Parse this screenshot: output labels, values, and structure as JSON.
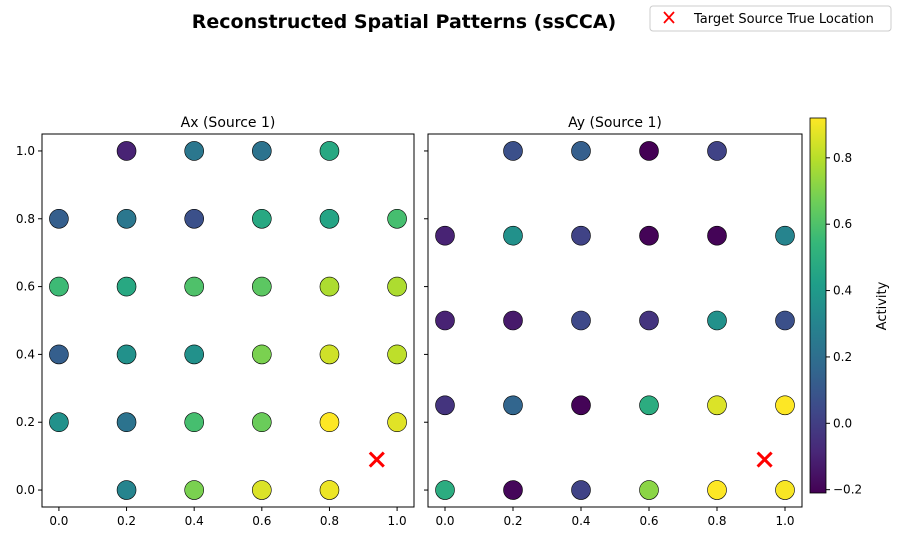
{
  "chart_data": {
    "title": "Reconstructed Spatial Patterns (ssCCA)",
    "legend": {
      "label": "Target Source True Location",
      "marker": "x",
      "color": "#ff0000",
      "placement": "top-right"
    },
    "colorbar": {
      "label": "Activity",
      "colormap": "viridis",
      "range": [
        -0.21,
        0.92
      ],
      "ticks": [
        "-0.2",
        "0.0",
        "0.2",
        "0.4",
        "0.6",
        "0.8"
      ]
    },
    "target": {
      "x": 0.94,
      "y": 0.09
    },
    "panels": [
      {
        "type": "scatter",
        "title": "Ax (Source 1)",
        "xlim": [
          -0.05,
          1.05
        ],
        "ylim": [
          -0.05,
          1.05
        ],
        "xticks": [
          "0.0",
          "0.2",
          "0.4",
          "0.6",
          "0.8",
          "1.0"
        ],
        "yticks": [
          "0.0",
          "0.2",
          "0.4",
          "0.6",
          "0.8",
          "1.0"
        ],
        "points": [
          {
            "x": 0.2,
            "y": 1.0,
            "v": -0.1
          },
          {
            "x": 0.4,
            "y": 1.0,
            "v": 0.24
          },
          {
            "x": 0.6,
            "y": 1.0,
            "v": 0.22
          },
          {
            "x": 0.8,
            "y": 1.0,
            "v": 0.47
          },
          {
            "x": 0.0,
            "y": 0.8,
            "v": 0.13
          },
          {
            "x": 0.2,
            "y": 0.8,
            "v": 0.24
          },
          {
            "x": 0.4,
            "y": 0.8,
            "v": 0.07
          },
          {
            "x": 0.6,
            "y": 0.8,
            "v": 0.47
          },
          {
            "x": 0.8,
            "y": 0.8,
            "v": 0.45
          },
          {
            "x": 1.0,
            "y": 0.8,
            "v": 0.58
          },
          {
            "x": 0.0,
            "y": 0.6,
            "v": 0.56
          },
          {
            "x": 0.2,
            "y": 0.6,
            "v": 0.47
          },
          {
            "x": 0.4,
            "y": 0.6,
            "v": 0.6
          },
          {
            "x": 0.6,
            "y": 0.6,
            "v": 0.63
          },
          {
            "x": 0.8,
            "y": 0.6,
            "v": 0.78
          },
          {
            "x": 1.0,
            "y": 0.6,
            "v": 0.78
          },
          {
            "x": 0.0,
            "y": 0.4,
            "v": 0.13
          },
          {
            "x": 0.2,
            "y": 0.4,
            "v": 0.36
          },
          {
            "x": 0.4,
            "y": 0.4,
            "v": 0.36
          },
          {
            "x": 0.6,
            "y": 0.4,
            "v": 0.69
          },
          {
            "x": 0.8,
            "y": 0.4,
            "v": 0.84
          },
          {
            "x": 1.0,
            "y": 0.4,
            "v": 0.81
          },
          {
            "x": 0.0,
            "y": 0.2,
            "v": 0.36
          },
          {
            "x": 0.2,
            "y": 0.2,
            "v": 0.22
          },
          {
            "x": 0.4,
            "y": 0.2,
            "v": 0.58
          },
          {
            "x": 0.6,
            "y": 0.2,
            "v": 0.66
          },
          {
            "x": 0.8,
            "y": 0.2,
            "v": 0.92
          },
          {
            "x": 1.0,
            "y": 0.2,
            "v": 0.87
          },
          {
            "x": 0.2,
            "y": 0.0,
            "v": 0.3
          },
          {
            "x": 0.4,
            "y": 0.0,
            "v": 0.69
          },
          {
            "x": 0.6,
            "y": 0.0,
            "v": 0.86
          },
          {
            "x": 0.8,
            "y": 0.0,
            "v": 0.89
          }
        ]
      },
      {
        "type": "scatter",
        "title": "Ay (Source 1)",
        "xlim": [
          -0.05,
          1.05
        ],
        "ylim": [
          -0.05,
          1.05
        ],
        "xticks": [
          "0.0",
          "0.2",
          "0.4",
          "0.6",
          "0.8",
          "1.0"
        ],
        "yticks": [],
        "points": [
          {
            "x": 0.2,
            "y": 1.0,
            "v": 0.07
          },
          {
            "x": 0.4,
            "y": 1.0,
            "v": 0.13
          },
          {
            "x": 0.6,
            "y": 1.0,
            "v": -0.21
          },
          {
            "x": 0.8,
            "y": 1.0,
            "v": 0.02
          },
          {
            "x": 0.0,
            "y": 0.75,
            "v": -0.1
          },
          {
            "x": 0.2,
            "y": 0.75,
            "v": 0.36
          },
          {
            "x": 0.4,
            "y": 0.75,
            "v": 0.02
          },
          {
            "x": 0.6,
            "y": 0.75,
            "v": -0.2
          },
          {
            "x": 0.8,
            "y": 0.75,
            "v": -0.2
          },
          {
            "x": 1.0,
            "y": 0.75,
            "v": 0.3
          },
          {
            "x": 0.0,
            "y": 0.5,
            "v": -0.1
          },
          {
            "x": 0.2,
            "y": 0.5,
            "v": -0.13
          },
          {
            "x": 0.4,
            "y": 0.5,
            "v": 0.04
          },
          {
            "x": 0.6,
            "y": 0.5,
            "v": -0.04
          },
          {
            "x": 0.8,
            "y": 0.5,
            "v": 0.36
          },
          {
            "x": 1.0,
            "y": 0.5,
            "v": 0.07
          },
          {
            "x": 0.0,
            "y": 0.25,
            "v": -0.04
          },
          {
            "x": 0.2,
            "y": 0.25,
            "v": 0.16
          },
          {
            "x": 0.4,
            "y": 0.25,
            "v": -0.2
          },
          {
            "x": 0.6,
            "y": 0.25,
            "v": 0.49
          },
          {
            "x": 0.8,
            "y": 0.25,
            "v": 0.86
          },
          {
            "x": 1.0,
            "y": 0.25,
            "v": 0.92
          },
          {
            "x": 0.0,
            "y": 0.0,
            "v": 0.49
          },
          {
            "x": 0.2,
            "y": 0.0,
            "v": -0.19
          },
          {
            "x": 0.4,
            "y": 0.0,
            "v": 0.02
          },
          {
            "x": 0.6,
            "y": 0.0,
            "v": 0.72
          },
          {
            "x": 0.8,
            "y": 0.0,
            "v": 0.92
          },
          {
            "x": 1.0,
            "y": 0.0,
            "v": 0.91
          }
        ]
      }
    ]
  }
}
